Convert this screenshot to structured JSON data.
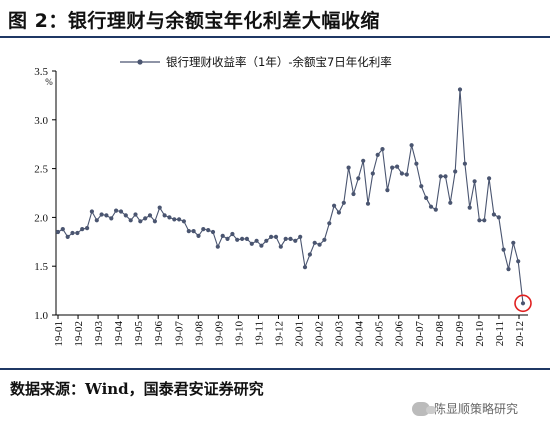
{
  "figure": {
    "title": "图 2：银行理财与余额宝年化利差大幅收缩",
    "source": "数据来源：Wind，国泰君安证券研究",
    "watermark": "陈显顺策略研究"
  },
  "colors": {
    "series": "#4a5570",
    "highlight_circle": "#e02020",
    "rule": "#1f3864"
  },
  "chart_data": {
    "type": "line",
    "title": "",
    "xlabel": "",
    "ylabel": "",
    "y_unit": "%",
    "ylim": [
      1.0,
      3.5
    ],
    "yticks": [
      1.0,
      1.5,
      2.0,
      2.5,
      3.0,
      3.5
    ],
    "ytick_labels": [
      "1.0",
      "1.5",
      "2.0",
      "2.5",
      "3.0",
      "3.5"
    ],
    "xtick_labels": [
      "19-01",
      "19-02",
      "19-03",
      "19-04",
      "19-05",
      "19-06",
      "19-07",
      "19-08",
      "19-09",
      "19-10",
      "19-11",
      "19-12",
      "20-01",
      "20-02",
      "20-03",
      "20-04",
      "20-05",
      "20-06",
      "20-07",
      "20-08",
      "20-09",
      "20-10",
      "20-11",
      "20-12"
    ],
    "grid": false,
    "legend_position": "top",
    "series": [
      {
        "name": "银行理财收益率（1年）-余额宝7日年化利率",
        "values": [
          1.85,
          1.88,
          1.8,
          1.84,
          1.84,
          1.88,
          1.89,
          2.06,
          1.97,
          2.03,
          2.02,
          1.99,
          2.07,
          2.06,
          2.02,
          1.97,
          2.03,
          1.96,
          1.99,
          2.02,
          1.96,
          2.1,
          2.02,
          2.0,
          1.98,
          1.98,
          1.96,
          1.86,
          1.86,
          1.81,
          1.88,
          1.87,
          1.85,
          1.7,
          1.81,
          1.78,
          1.83,
          1.77,
          1.78,
          1.78,
          1.73,
          1.76,
          1.71,
          1.76,
          1.8,
          1.8,
          1.7,
          1.78,
          1.78,
          1.76,
          1.8,
          1.49,
          1.62,
          1.74,
          1.72,
          1.77,
          1.94,
          2.12,
          2.05,
          2.15,
          2.51,
          2.24,
          2.4,
          2.58,
          2.14,
          2.45,
          2.64,
          2.7,
          2.28,
          2.51,
          2.52,
          2.45,
          2.44,
          2.74,
          2.55,
          2.32,
          2.2,
          2.11,
          2.08,
          2.42,
          2.42,
          2.15,
          2.47,
          3.31,
          2.55,
          2.1,
          2.37,
          1.97,
          1.97,
          2.4,
          2.03,
          2.0,
          1.67,
          1.47,
          1.74,
          1.55,
          1.12
        ],
        "point_count": 97,
        "highlight_last_point": true
      }
    ]
  }
}
